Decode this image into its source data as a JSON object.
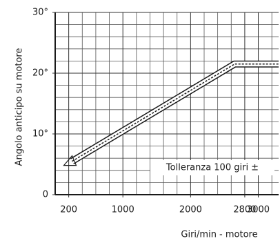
{
  "chart_data": {
    "type": "line",
    "y_label": "Angolo anticipo su motore",
    "x_label": "Giri/min - motore",
    "annotation": "Tolleranza 100 giri ±",
    "x": [
      250,
      2650,
      3300
    ],
    "series": [
      {
        "color": "#1a1a1a",
        "values": [
          5.5,
          21.5,
          21.5
        ]
      }
    ],
    "xlim": [
      0,
      3300
    ],
    "ylim": [
      0,
      30
    ],
    "xticks": [
      200,
      1000,
      2000,
      2800,
      3000
    ],
    "yticks": [
      0,
      {
        "value": 10,
        "label": "10°"
      },
      {
        "value": 20,
        "label": "20°"
      },
      {
        "value": 30,
        "label": "30°"
      }
    ],
    "xminor": [
      0,
      400,
      600,
      800,
      1200,
      1400,
      1600,
      1800,
      2200,
      2400,
      2600,
      3200
    ],
    "yminor": [
      2,
      4,
      6,
      8,
      12,
      14,
      16,
      18,
      22,
      24,
      26,
      28
    ],
    "grid": true
  }
}
